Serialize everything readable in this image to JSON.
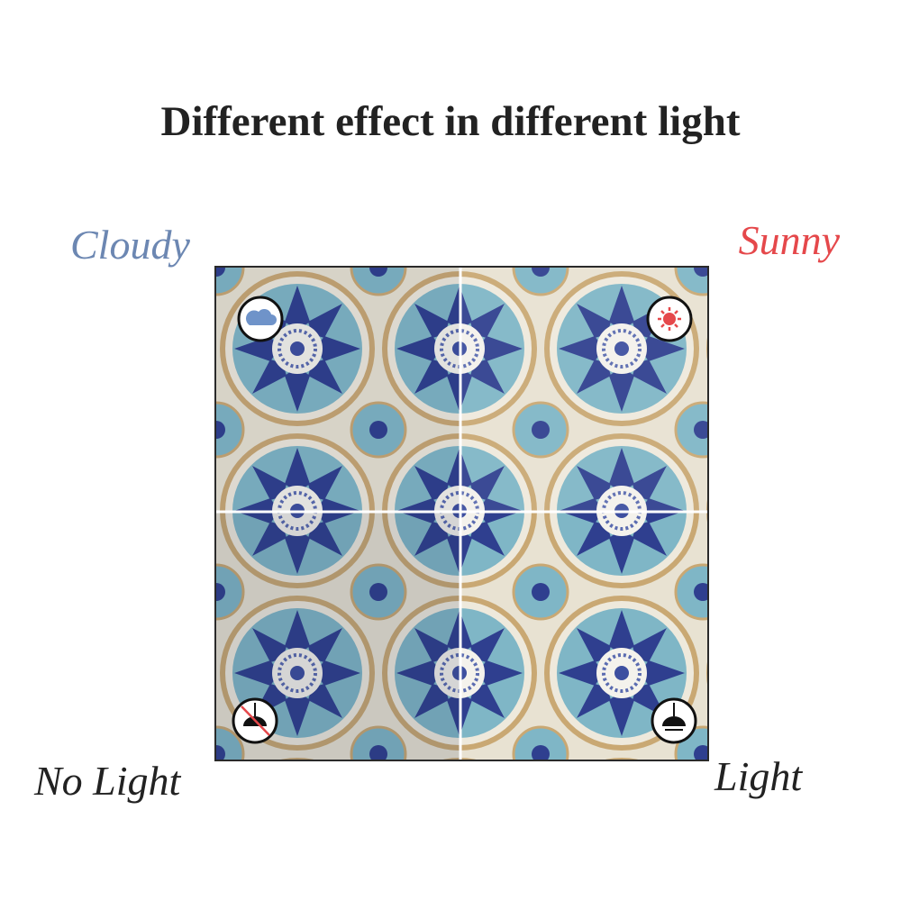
{
  "title": "Different effect in different light",
  "labels": {
    "cloudy": "Cloudy",
    "sunny": "Sunny",
    "no_light": "No Light",
    "light": "Light"
  }
}
